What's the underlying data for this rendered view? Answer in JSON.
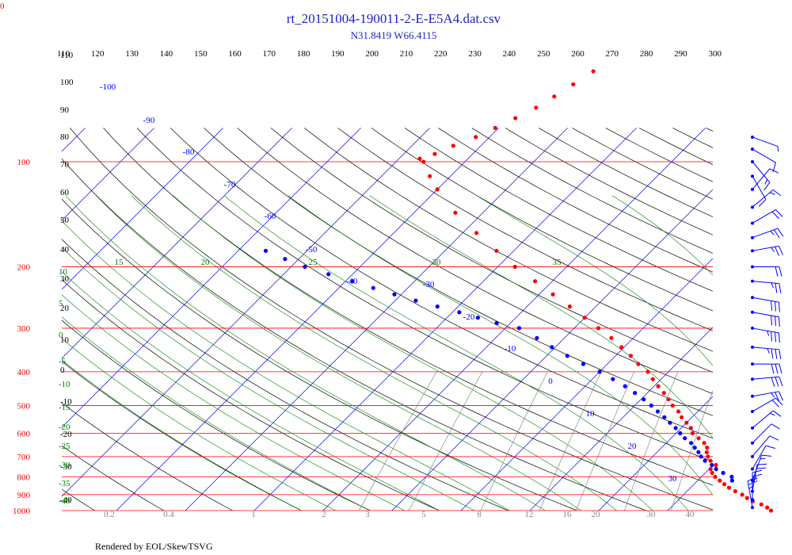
{
  "chart_data": {
    "type": "scatter",
    "chart_kind": "skew-t log-p thermodynamic diagram",
    "title": "rt_20151004-190011-2-E-E5A4.dat.csv",
    "subtitle": "N31.8419 W66.4115",
    "footer": "Rendered by EOL/SkewTSVG",
    "pressure_axis": {
      "scale": "log",
      "range_hPa": [
        1000,
        100
      ],
      "labels": [
        "100",
        "200",
        "300",
        "400",
        "500",
        "600",
        "700",
        "800",
        "900",
        "1000"
      ]
    },
    "theta_labels": [
      "110",
      "120",
      "130",
      "140",
      "150",
      "160",
      "170",
      "180",
      "190",
      "200",
      "210",
      "220",
      "230",
      "240",
      "250",
      "260",
      "270",
      "280",
      "290",
      "300"
    ],
    "left_height_labels": [
      "110",
      "100",
      "90",
      "80",
      "70",
      "60",
      "50",
      "40",
      "30",
      "20",
      "10",
      "0",
      "-10",
      "-20",
      "-30",
      "-40"
    ],
    "left_green_labels": [
      "10",
      "5",
      "0",
      "-5",
      "-10",
      "-15",
      "-20",
      "-25",
      "-30",
      "-35",
      "-40"
    ],
    "isotherm_labels": [
      "-100",
      "-90",
      "-80",
      "-70",
      "-60",
      "-50",
      "-40",
      "-30",
      "-20",
      "-10",
      "0",
      "10",
      "20",
      "30"
    ],
    "moist_adiabat_labels": [
      "15",
      "20",
      "25",
      "30",
      "35"
    ],
    "mixing_ratio_labels": [
      "0.2",
      "0.4",
      "1",
      "2",
      "3",
      "5",
      "8",
      "12",
      "16",
      "20",
      "30",
      "40"
    ],
    "corner_label": "0",
    "colors": {
      "temperature": "#ff0000",
      "dewpoint": "#0000ff",
      "isobar": "#ff0000",
      "isotherm": "#0000ff",
      "dry_adiabat": "#000000",
      "moist_adiabat": "#008000",
      "mixing_ratio": "#888888",
      "barb": "#0000ff"
    },
    "temperature_profile": [
      {
        "p": 1000,
        "t": 25.0
      },
      {
        "p": 980,
        "t": 24.0
      },
      {
        "p": 960,
        "t": 22.7
      },
      {
        "p": 940,
        "t": 21.0
      },
      {
        "p": 920,
        "t": 19.7
      },
      {
        "p": 900,
        "t": 18.5
      },
      {
        "p": 880,
        "t": 17.0
      },
      {
        "p": 860,
        "t": 15.6
      },
      {
        "p": 840,
        "t": 14.4
      },
      {
        "p": 820,
        "t": 13.2
      },
      {
        "p": 800,
        "t": 12.0
      },
      {
        "p": 780,
        "t": 11.0
      },
      {
        "p": 760,
        "t": 10.2
      },
      {
        "p": 740,
        "t": 10.4
      },
      {
        "p": 720,
        "t": 9.0
      },
      {
        "p": 700,
        "t": 8.0
      },
      {
        "p": 680,
        "t": 7.2
      },
      {
        "p": 660,
        "t": 6.6
      },
      {
        "p": 640,
        "t": 5.5
      },
      {
        "p": 620,
        "t": 4.0
      },
      {
        "p": 600,
        "t": 2.4
      },
      {
        "p": 580,
        "t": 1.4
      },
      {
        "p": 560,
        "t": 0.0
      },
      {
        "p": 540,
        "t": -1.5
      },
      {
        "p": 520,
        "t": -2.8
      },
      {
        "p": 500,
        "t": -4.5
      },
      {
        "p": 480,
        "t": -6.0
      },
      {
        "p": 460,
        "t": -7.6
      },
      {
        "p": 440,
        "t": -9.4
      },
      {
        "p": 420,
        "t": -11.2
      },
      {
        "p": 400,
        "t": -13.0
      },
      {
        "p": 380,
        "t": -15.5
      },
      {
        "p": 360,
        "t": -17.8
      },
      {
        "p": 340,
        "t": -20.4
      },
      {
        "p": 320,
        "t": -23.2
      },
      {
        "p": 300,
        "t": -26.5
      },
      {
        "p": 280,
        "t": -30.0
      },
      {
        "p": 260,
        "t": -33.8
      },
      {
        "p": 240,
        "t": -38.0
      },
      {
        "p": 220,
        "t": -42.5
      },
      {
        "p": 200,
        "t": -47.5
      },
      {
        "p": 180,
        "t": -52.5
      },
      {
        "p": 160,
        "t": -58.0
      },
      {
        "p": 140,
        "t": -64.0
      },
      {
        "p": 120,
        "t": -70.0
      },
      {
        "p": 110,
        "t": -73.0
      },
      {
        "p": 100,
        "t": -76.0
      },
      {
        "p": 98,
        "t": -77.0
      },
      {
        "p": 95,
        "t": -75.5
      },
      {
        "p": 90,
        "t": -74.0
      },
      {
        "p": 85,
        "t": -72.0
      },
      {
        "p": 80,
        "t": -70.5
      },
      {
        "p": 75,
        "t": -69.0
      },
      {
        "p": 70,
        "t": -67.5
      },
      {
        "p": 65,
        "t": -66.5
      },
      {
        "p": 60,
        "t": -65.5
      },
      {
        "p": 55,
        "t": -64.5
      }
    ],
    "dewpoint_profile": [
      {
        "p": 820,
        "t": 15.0
      },
      {
        "p": 800,
        "t": 14.4
      },
      {
        "p": 780,
        "t": 12.6
      },
      {
        "p": 760,
        "t": 11.0
      },
      {
        "p": 740,
        "t": 9.8
      },
      {
        "p": 720,
        "t": 8.2
      },
      {
        "p": 700,
        "t": 7.0
      },
      {
        "p": 680,
        "t": 6.0
      },
      {
        "p": 660,
        "t": 4.8
      },
      {
        "p": 640,
        "t": 3.6
      },
      {
        "p": 620,
        "t": 2.0
      },
      {
        "p": 600,
        "t": 0.6
      },
      {
        "p": 580,
        "t": -0.8
      },
      {
        "p": 560,
        "t": -2.4
      },
      {
        "p": 540,
        "t": -4.0
      },
      {
        "p": 520,
        "t": -5.8
      },
      {
        "p": 500,
        "t": -7.6
      },
      {
        "p": 480,
        "t": -9.6
      },
      {
        "p": 460,
        "t": -11.8
      },
      {
        "p": 440,
        "t": -14.2
      },
      {
        "p": 420,
        "t": -17.0
      },
      {
        "p": 400,
        "t": -20.0
      },
      {
        "p": 380,
        "t": -23.5
      },
      {
        "p": 360,
        "t": -27.0
      },
      {
        "p": 340,
        "t": -30.5
      },
      {
        "p": 320,
        "t": -34.0
      },
      {
        "p": 300,
        "t": -38.0
      },
      {
        "p": 290,
        "t": -42.0
      },
      {
        "p": 280,
        "t": -45.5
      },
      {
        "p": 270,
        "t": -49.0
      },
      {
        "p": 260,
        "t": -53.0
      },
      {
        "p": 250,
        "t": -57.0
      },
      {
        "p": 240,
        "t": -61.0
      },
      {
        "p": 230,
        "t": -65.0
      },
      {
        "p": 220,
        "t": -69.0
      },
      {
        "p": 210,
        "t": -73.5
      },
      {
        "p": 200,
        "t": -78.0
      },
      {
        "p": 190,
        "t": -82.0
      },
      {
        "p": 180,
        "t": -86.0
      }
    ],
    "wind_barbs": [
      {
        "p": 85,
        "dir": 290,
        "spd": 5
      },
      {
        "p": 92,
        "dir": 300,
        "spd": 10
      },
      {
        "p": 100,
        "dir": 320,
        "spd": 15
      },
      {
        "p": 110,
        "dir": 330,
        "spd": 10
      },
      {
        "p": 120,
        "dir": 220,
        "spd": 10
      },
      {
        "p": 135,
        "dir": 230,
        "spd": 15
      },
      {
        "p": 150,
        "dir": 240,
        "spd": 20
      },
      {
        "p": 165,
        "dir": 250,
        "spd": 25
      },
      {
        "p": 180,
        "dir": 260,
        "spd": 25
      },
      {
        "p": 200,
        "dir": 270,
        "spd": 20
      },
      {
        "p": 220,
        "dir": 275,
        "spd": 25
      },
      {
        "p": 245,
        "dir": 280,
        "spd": 30
      },
      {
        "p": 270,
        "dir": 280,
        "spd": 30
      },
      {
        "p": 300,
        "dir": 280,
        "spd": 35
      },
      {
        "p": 340,
        "dir": 275,
        "spd": 35
      },
      {
        "p": 380,
        "dir": 270,
        "spd": 30
      },
      {
        "p": 420,
        "dir": 265,
        "spd": 30
      },
      {
        "p": 470,
        "dir": 260,
        "spd": 25
      },
      {
        "p": 520,
        "dir": 240,
        "spd": 20
      },
      {
        "p": 580,
        "dir": 230,
        "spd": 15
      },
      {
        "p": 640,
        "dir": 225,
        "spd": 10
      },
      {
        "p": 700,
        "dir": 220,
        "spd": 10
      },
      {
        "p": 760,
        "dir": 210,
        "spd": 10
      },
      {
        "p": 820,
        "dir": 200,
        "spd": 15
      },
      {
        "p": 880,
        "dir": 190,
        "spd": 20
      },
      {
        "p": 930,
        "dir": 180,
        "spd": 25
      },
      {
        "p": 980,
        "dir": 170,
        "spd": 25
      }
    ]
  }
}
